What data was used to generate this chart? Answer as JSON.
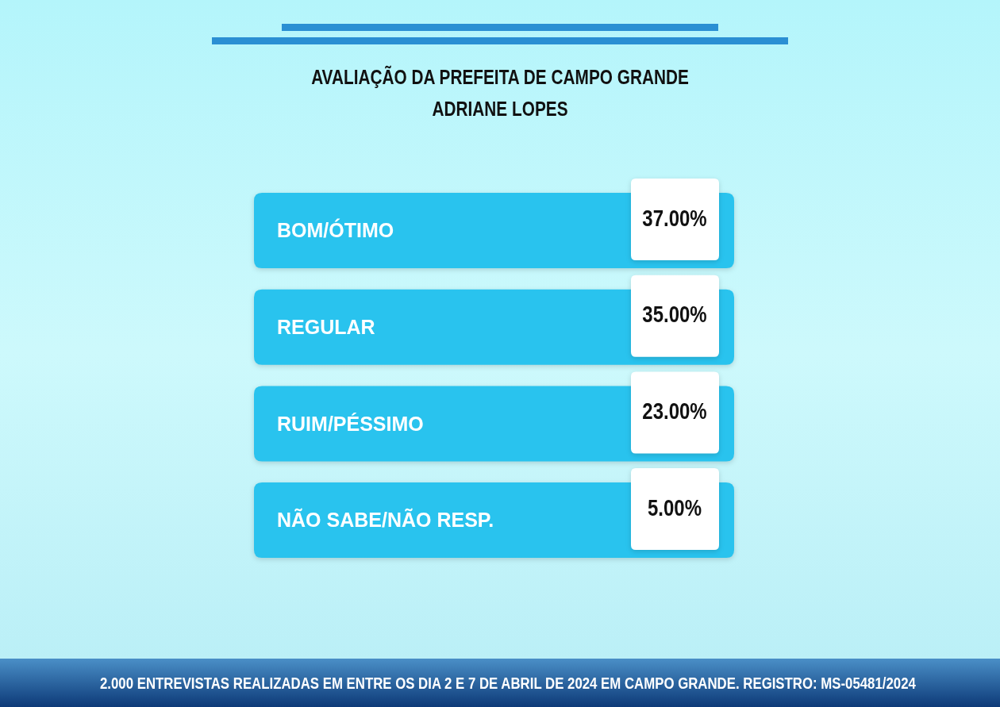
{
  "chart_data": {
    "type": "other",
    "title": "AVALIAÇÃO DA PREFEITA DE CAMPO GRANDE",
    "subtitle": "ADRIANE LOPES",
    "categories": [
      "BOM/ÓTIMO",
      "REGULAR",
      "RUIM/PÉSSIMO",
      "NÃO SABE/NÃO RESP."
    ],
    "values": [
      37,
      35,
      23,
      5
    ],
    "value_labels": [
      "37.00%",
      "35.00%",
      "23.00%",
      "5.00%"
    ],
    "annotations": [
      "2.000 ENTREVISTAS REALIZADAS EM ENTRE OS DIA 2 E 7 DE ABRIL DE 2024 EM CAMPO GRANDE. REGISTRO: MS-05481/2024"
    ]
  }
}
